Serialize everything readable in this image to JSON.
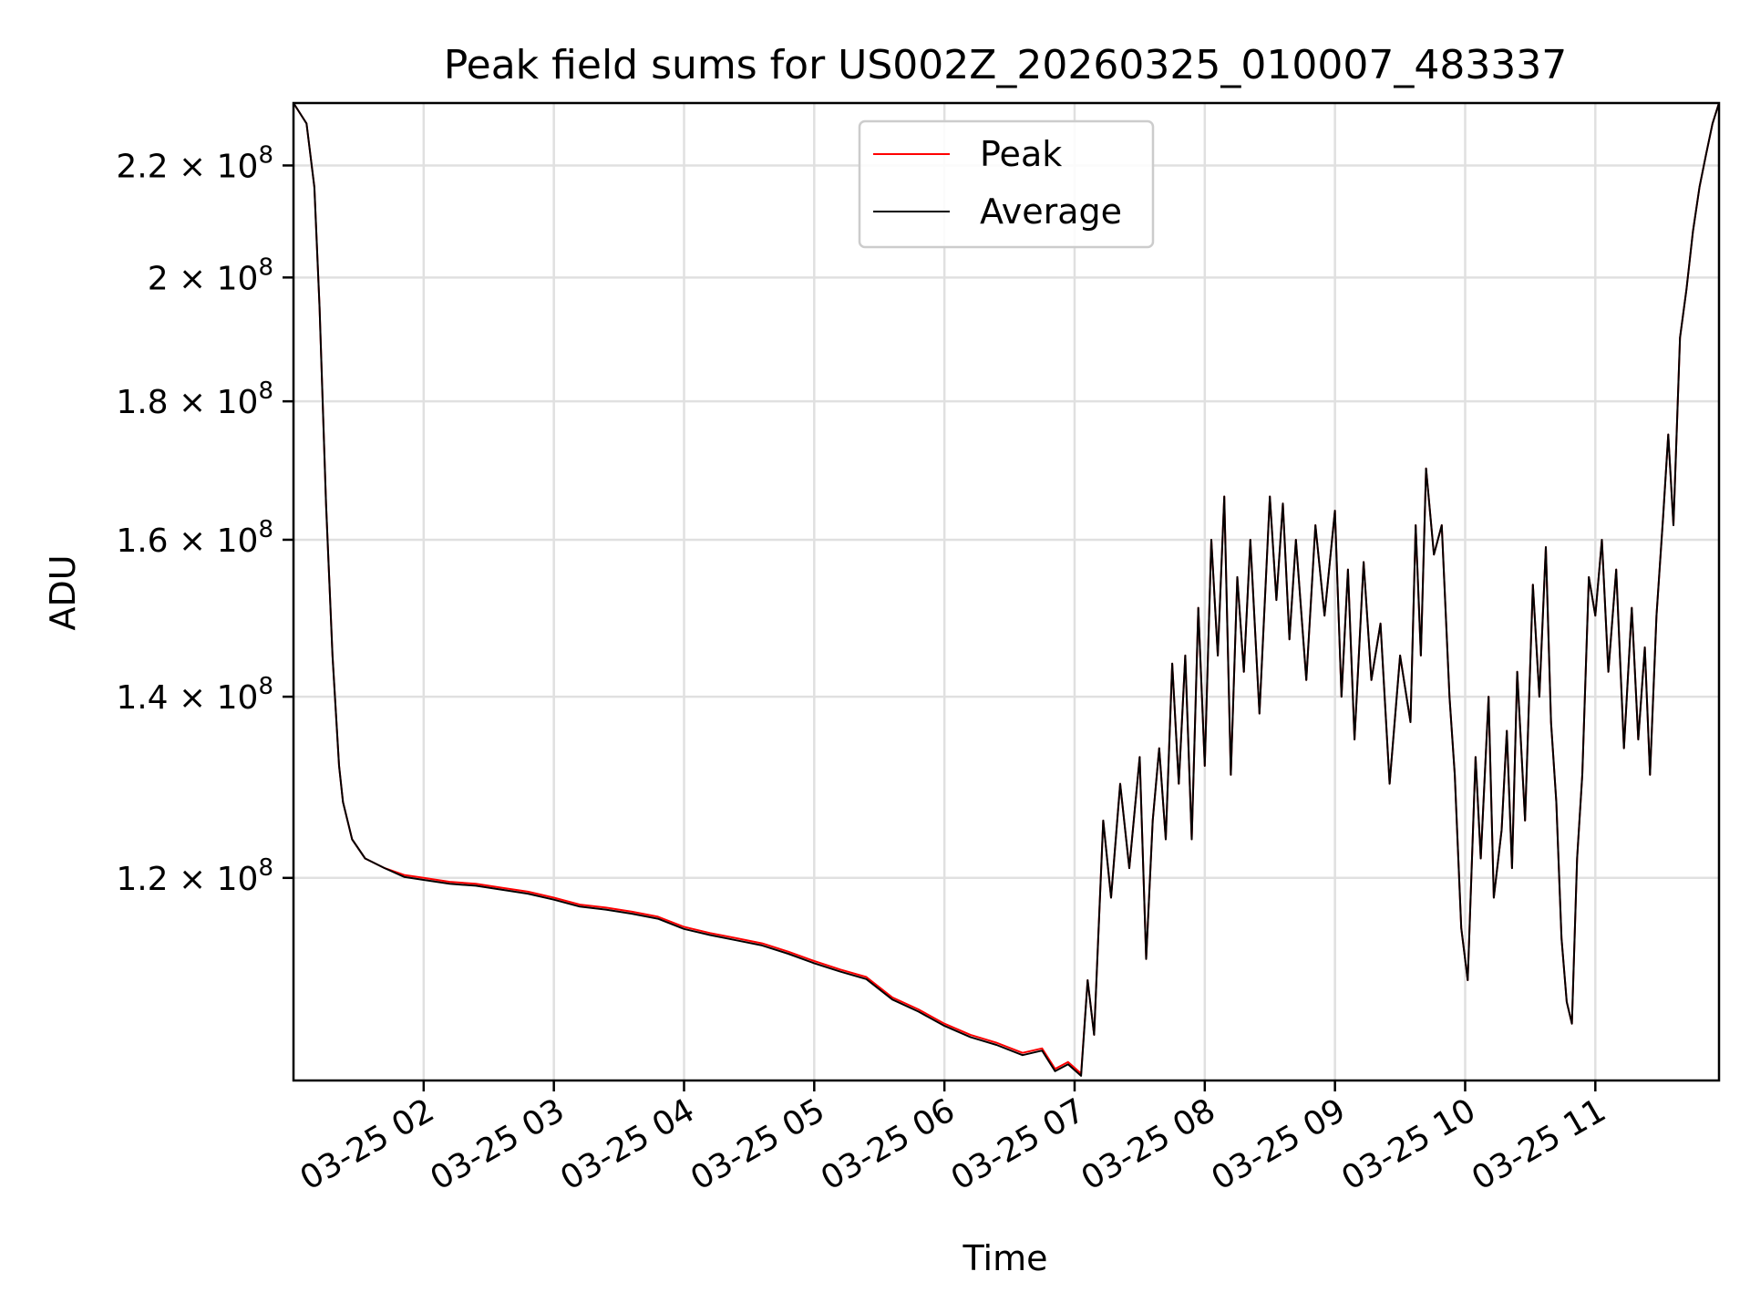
{
  "chart_data": {
    "type": "line",
    "title": "Peak field sums for US002Z_20260325_010007_483337",
    "xlabel": "Time",
    "ylabel": "ADU",
    "grid": true,
    "legend_position": "top-center",
    "x_unit": "hours since 03-25 01:00",
    "xlim": [
      0,
      10.95
    ],
    "ylim_log": [
      101000000,
      232000000
    ],
    "x_ticks": [
      {
        "value": 1,
        "label": "03-25 02"
      },
      {
        "value": 2,
        "label": "03-25 03"
      },
      {
        "value": 3,
        "label": "03-25 04"
      },
      {
        "value": 4,
        "label": "03-25 05"
      },
      {
        "value": 5,
        "label": "03-25 06"
      },
      {
        "value": 6,
        "label": "03-25 07"
      },
      {
        "value": 7,
        "label": "03-25 08"
      },
      {
        "value": 8,
        "label": "03-25 09"
      },
      {
        "value": 9,
        "label": "03-25 10"
      },
      {
        "value": 10,
        "label": "03-25 11"
      }
    ],
    "y_ticks": [
      {
        "value": 120000000,
        "mantissa": "1.2",
        "exp": "8"
      },
      {
        "value": 140000000,
        "mantissa": "1.4",
        "exp": "8"
      },
      {
        "value": 160000000,
        "mantissa": "1.6",
        "exp": "8"
      },
      {
        "value": 180000000,
        "mantissa": "1.8",
        "exp": "8"
      },
      {
        "value": 200000000,
        "mantissa": "2",
        "exp": "8"
      },
      {
        "value": 220000000,
        "mantissa": "2.2",
        "exp": "8"
      }
    ],
    "series": [
      {
        "name": "Peak",
        "color": "#ff0000",
        "points": [
          [
            0.0,
            232
          ],
          [
            0.1,
            228
          ],
          [
            0.16,
            216
          ],
          [
            0.2,
            195
          ],
          [
            0.25,
            165
          ],
          [
            0.3,
            145
          ],
          [
            0.35,
            132
          ],
          [
            0.38,
            128
          ],
          [
            0.45,
            124
          ],
          [
            0.55,
            122
          ],
          [
            0.7,
            121
          ],
          [
            0.85,
            120.3
          ],
          [
            1.0,
            120
          ],
          [
            1.2,
            119.6
          ],
          [
            1.4,
            119.4
          ],
          [
            1.6,
            119.0
          ],
          [
            1.8,
            118.6
          ],
          [
            2.0,
            118.0
          ],
          [
            2.2,
            117.3
          ],
          [
            2.4,
            117.0
          ],
          [
            2.6,
            116.6
          ],
          [
            2.8,
            116.1
          ],
          [
            3.0,
            115.1
          ],
          [
            3.2,
            114.5
          ],
          [
            3.4,
            114.0
          ],
          [
            3.6,
            113.5
          ],
          [
            3.8,
            112.7
          ],
          [
            4.0,
            111.8
          ],
          [
            4.2,
            111.0
          ],
          [
            4.4,
            110.3
          ],
          [
            4.6,
            108.4
          ],
          [
            4.8,
            107.3
          ],
          [
            5.0,
            106.0
          ],
          [
            5.2,
            105.0
          ],
          [
            5.4,
            104.3
          ],
          [
            5.6,
            103.4
          ],
          [
            5.75,
            103.8
          ],
          [
            5.85,
            102.0
          ],
          [
            5.95,
            102.6
          ],
          [
            6.05,
            101.6
          ],
          [
            6.1,
            110
          ],
          [
            6.15,
            105
          ],
          [
            6.22,
            126
          ],
          [
            6.28,
            118
          ],
          [
            6.35,
            130
          ],
          [
            6.42,
            121
          ],
          [
            6.5,
            133
          ],
          [
            6.55,
            112
          ],
          [
            6.6,
            126
          ],
          [
            6.65,
            134
          ],
          [
            6.7,
            124
          ],
          [
            6.75,
            144
          ],
          [
            6.8,
            130
          ],
          [
            6.85,
            145
          ],
          [
            6.9,
            124
          ],
          [
            6.95,
            151
          ],
          [
            7.0,
            132
          ],
          [
            7.05,
            160
          ],
          [
            7.1,
            145
          ],
          [
            7.15,
            166
          ],
          [
            7.2,
            131
          ],
          [
            7.25,
            155
          ],
          [
            7.3,
            143
          ],
          [
            7.35,
            160
          ],
          [
            7.42,
            138
          ],
          [
            7.5,
            166
          ],
          [
            7.55,
            152
          ],
          [
            7.6,
            165
          ],
          [
            7.65,
            147
          ],
          [
            7.7,
            160
          ],
          [
            7.78,
            142
          ],
          [
            7.85,
            162
          ],
          [
            7.92,
            150
          ],
          [
            8.0,
            164
          ],
          [
            8.05,
            140
          ],
          [
            8.1,
            156
          ],
          [
            8.15,
            135
          ],
          [
            8.22,
            157
          ],
          [
            8.28,
            142
          ],
          [
            8.35,
            149
          ],
          [
            8.42,
            130
          ],
          [
            8.5,
            145
          ],
          [
            8.58,
            137
          ],
          [
            8.62,
            162
          ],
          [
            8.66,
            145
          ],
          [
            8.7,
            170
          ],
          [
            8.76,
            158
          ],
          [
            8.82,
            162
          ],
          [
            8.88,
            140
          ],
          [
            8.92,
            131
          ],
          [
            8.97,
            115
          ],
          [
            9.02,
            110
          ],
          [
            9.08,
            133
          ],
          [
            9.12,
            122
          ],
          [
            9.18,
            140
          ],
          [
            9.22,
            118
          ],
          [
            9.28,
            125
          ],
          [
            9.32,
            136
          ],
          [
            9.36,
            121
          ],
          [
            9.4,
            143
          ],
          [
            9.46,
            126
          ],
          [
            9.52,
            154
          ],
          [
            9.57,
            140
          ],
          [
            9.62,
            159
          ],
          [
            9.66,
            137
          ],
          [
            9.7,
            128
          ],
          [
            9.74,
            114
          ],
          [
            9.78,
            108
          ],
          [
            9.82,
            106
          ],
          [
            9.86,
            122
          ],
          [
            9.9,
            131
          ],
          [
            9.95,
            155
          ],
          [
            10.0,
            150
          ],
          [
            10.05,
            160
          ],
          [
            10.1,
            143
          ],
          [
            10.16,
            156
          ],
          [
            10.22,
            134
          ],
          [
            10.28,
            151
          ],
          [
            10.33,
            135
          ],
          [
            10.38,
            146
          ],
          [
            10.42,
            131
          ],
          [
            10.47,
            150
          ],
          [
            10.52,
            163
          ],
          [
            10.56,
            175
          ],
          [
            10.6,
            162
          ],
          [
            10.65,
            190
          ],
          [
            10.7,
            198
          ],
          [
            10.75,
            208
          ],
          [
            10.8,
            216
          ],
          [
            10.85,
            222
          ],
          [
            10.9,
            228
          ],
          [
            10.95,
            232
          ]
        ]
      },
      {
        "name": "Average",
        "color": "#000000",
        "points": [
          [
            0.0,
            232
          ],
          [
            0.1,
            228
          ],
          [
            0.16,
            216
          ],
          [
            0.2,
            195
          ],
          [
            0.25,
            165
          ],
          [
            0.3,
            145
          ],
          [
            0.35,
            132
          ],
          [
            0.38,
            128
          ],
          [
            0.45,
            124
          ],
          [
            0.55,
            122
          ],
          [
            0.7,
            121
          ],
          [
            0.85,
            120.1
          ],
          [
            1.0,
            119.8
          ],
          [
            1.2,
            119.4
          ],
          [
            1.4,
            119.2
          ],
          [
            1.6,
            118.8
          ],
          [
            1.8,
            118.4
          ],
          [
            2.0,
            117.8
          ],
          [
            2.2,
            117.1
          ],
          [
            2.4,
            116.8
          ],
          [
            2.6,
            116.4
          ],
          [
            2.8,
            115.9
          ],
          [
            3.0,
            114.9
          ],
          [
            3.2,
            114.3
          ],
          [
            3.4,
            113.8
          ],
          [
            3.6,
            113.3
          ],
          [
            3.8,
            112.5
          ],
          [
            4.0,
            111.6
          ],
          [
            4.2,
            110.8
          ],
          [
            4.4,
            110.1
          ],
          [
            4.6,
            108.2
          ],
          [
            4.8,
            107.1
          ],
          [
            5.0,
            105.8
          ],
          [
            5.2,
            104.8
          ],
          [
            5.4,
            104.1
          ],
          [
            5.6,
            103.2
          ],
          [
            5.75,
            103.6
          ],
          [
            5.85,
            101.8
          ],
          [
            5.95,
            102.4
          ],
          [
            6.05,
            101.4
          ],
          [
            6.1,
            110
          ],
          [
            6.15,
            105
          ],
          [
            6.22,
            126
          ],
          [
            6.28,
            118
          ],
          [
            6.35,
            130
          ],
          [
            6.42,
            121
          ],
          [
            6.5,
            133
          ],
          [
            6.55,
            112
          ],
          [
            6.6,
            126
          ],
          [
            6.65,
            134
          ],
          [
            6.7,
            124
          ],
          [
            6.75,
            144
          ],
          [
            6.8,
            130
          ],
          [
            6.85,
            145
          ],
          [
            6.9,
            124
          ],
          [
            6.95,
            151
          ],
          [
            7.0,
            132
          ],
          [
            7.05,
            160
          ],
          [
            7.1,
            145
          ],
          [
            7.15,
            166
          ],
          [
            7.2,
            131
          ],
          [
            7.25,
            155
          ],
          [
            7.3,
            143
          ],
          [
            7.35,
            160
          ],
          [
            7.42,
            138
          ],
          [
            7.5,
            166
          ],
          [
            7.55,
            152
          ],
          [
            7.6,
            165
          ],
          [
            7.65,
            147
          ],
          [
            7.7,
            160
          ],
          [
            7.78,
            142
          ],
          [
            7.85,
            162
          ],
          [
            7.92,
            150
          ],
          [
            8.0,
            164
          ],
          [
            8.05,
            140
          ],
          [
            8.1,
            156
          ],
          [
            8.15,
            135
          ],
          [
            8.22,
            157
          ],
          [
            8.28,
            142
          ],
          [
            8.35,
            149
          ],
          [
            8.42,
            130
          ],
          [
            8.5,
            145
          ],
          [
            8.58,
            137
          ],
          [
            8.62,
            162
          ],
          [
            8.66,
            145
          ],
          [
            8.7,
            170
          ],
          [
            8.76,
            158
          ],
          [
            8.82,
            162
          ],
          [
            8.88,
            140
          ],
          [
            8.92,
            131
          ],
          [
            8.97,
            115
          ],
          [
            9.02,
            110
          ],
          [
            9.08,
            133
          ],
          [
            9.12,
            122
          ],
          [
            9.18,
            140
          ],
          [
            9.22,
            118
          ],
          [
            9.28,
            125
          ],
          [
            9.32,
            136
          ],
          [
            9.36,
            121
          ],
          [
            9.4,
            143
          ],
          [
            9.46,
            126
          ],
          [
            9.52,
            154
          ],
          [
            9.57,
            140
          ],
          [
            9.62,
            159
          ],
          [
            9.66,
            137
          ],
          [
            9.7,
            128
          ],
          [
            9.74,
            114
          ],
          [
            9.78,
            108
          ],
          [
            9.82,
            106
          ],
          [
            9.86,
            122
          ],
          [
            9.9,
            131
          ],
          [
            9.95,
            155
          ],
          [
            10.0,
            150
          ],
          [
            10.05,
            160
          ],
          [
            10.1,
            143
          ],
          [
            10.16,
            156
          ],
          [
            10.22,
            134
          ],
          [
            10.28,
            151
          ],
          [
            10.33,
            135
          ],
          [
            10.38,
            146
          ],
          [
            10.42,
            131
          ],
          [
            10.47,
            150
          ],
          [
            10.52,
            163
          ],
          [
            10.56,
            175
          ],
          [
            10.6,
            162
          ],
          [
            10.65,
            190
          ],
          [
            10.7,
            198
          ],
          [
            10.75,
            208
          ],
          [
            10.8,
            216
          ],
          [
            10.85,
            222
          ],
          [
            10.9,
            228
          ],
          [
            10.95,
            232
          ]
        ]
      }
    ]
  }
}
